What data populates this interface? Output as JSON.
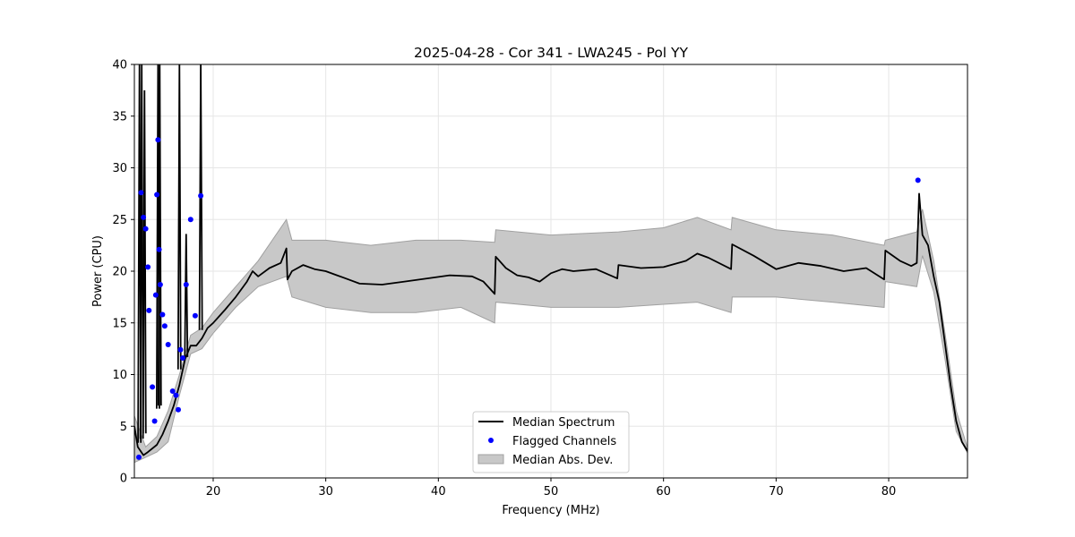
{
  "chart_data": {
    "type": "line",
    "title": "2025-04-28 - Cor 341 - LWA245 - Pol YY",
    "xlabel": "Frequency (MHz)",
    "ylabel": "Power (CPU)",
    "xlim": [
      13.0,
      87.0
    ],
    "ylim": [
      0,
      40
    ],
    "xticks": [
      20,
      30,
      40,
      50,
      60,
      70,
      80
    ],
    "yticks": [
      0,
      5,
      10,
      15,
      20,
      25,
      30,
      35,
      40
    ],
    "grid": true,
    "legend_position": "lower-center",
    "legend": {
      "median": "Median Spectrum",
      "flagged": "Flagged Channels",
      "mad": "Median Abs. Dev."
    },
    "colors": {
      "median": "#000000",
      "flagged": "#0000ff",
      "mad_fill": "#c8c8c8",
      "mad_edge": "#a0a0a0"
    },
    "series": [
      {
        "name": "Median Spectrum",
        "x": [
          13.0,
          13.3,
          13.8,
          14.2,
          15.0,
          15.5,
          16.0,
          16.5,
          17.0,
          17.5,
          18.0,
          18.5,
          19.0,
          19.5,
          20.0,
          21.0,
          22.0,
          23.0,
          23.5,
          24.0,
          25.0,
          26.0,
          26.5,
          26.6,
          27.0,
          28.0,
          29.0,
          30.0,
          31.0,
          32.0,
          33.0,
          35.0,
          37.0,
          39.0,
          41.0,
          43.0,
          44.0,
          45.0,
          45.1,
          46.0,
          47.0,
          48.0,
          49.0,
          50.0,
          51.0,
          52.0,
          54.0,
          55.9,
          56.0,
          58.0,
          60.0,
          62.0,
          63.0,
          64.0,
          66.0,
          66.1,
          68.0,
          70.0,
          72.0,
          74.0,
          76.0,
          78.0,
          79.6,
          79.7,
          81.0,
          82.0,
          82.5,
          82.7,
          83.0,
          83.5,
          84.0,
          84.5,
          85.0,
          85.5,
          86.0,
          86.5,
          87.0
        ],
        "y": [
          5.0,
          3.0,
          2.2,
          2.5,
          3.2,
          4.2,
          5.5,
          7.0,
          9.0,
          11.5,
          12.8,
          12.8,
          13.5,
          14.5,
          15.0,
          16.2,
          17.5,
          19.0,
          20.0,
          19.5,
          20.3,
          20.8,
          22.2,
          19.2,
          20.0,
          20.6,
          20.2,
          20.0,
          19.6,
          19.2,
          18.8,
          18.7,
          19.0,
          19.3,
          19.6,
          19.5,
          19.0,
          17.8,
          21.4,
          20.3,
          19.6,
          19.4,
          19.0,
          19.8,
          20.2,
          20.0,
          20.2,
          19.3,
          20.6,
          20.3,
          20.4,
          21.0,
          21.7,
          21.3,
          20.2,
          22.6,
          21.5,
          20.2,
          20.8,
          20.5,
          20.0,
          20.3,
          19.2,
          22.0,
          21.0,
          20.5,
          20.8,
          27.5,
          23.5,
          22.5,
          19.5,
          17.0,
          13.0,
          9.0,
          5.5,
          3.5,
          2.6
        ]
      },
      {
        "name": "Median Abs. Dev.",
        "x": [
          13.0,
          14.0,
          15.0,
          16.0,
          17.0,
          18.0,
          19.0,
          20.0,
          22.0,
          24.0,
          26.5,
          27.0,
          30.0,
          34.0,
          38.0,
          42.0,
          45.0,
          45.1,
          50.0,
          56.0,
          60.0,
          63.0,
          66.0,
          66.1,
          70.0,
          75.0,
          79.6,
          79.7,
          82.5,
          83.0,
          84.0,
          85.0,
          86.0,
          87.0
        ],
        "upper": [
          6.0,
          3.0,
          4.0,
          6.5,
          10.0,
          13.8,
          14.5,
          16.0,
          18.5,
          21.0,
          25.0,
          23.0,
          23.0,
          22.5,
          23.0,
          23.0,
          22.8,
          24.0,
          23.5,
          23.8,
          24.2,
          25.2,
          24.0,
          25.2,
          24.0,
          23.5,
          22.5,
          23.0,
          23.8,
          26.0,
          21.0,
          14.0,
          6.5,
          2.9
        ],
        "lower": [
          1.5,
          2.0,
          2.5,
          3.5,
          8.0,
          12.0,
          12.5,
          14.0,
          16.5,
          18.5,
          19.5,
          17.5,
          16.5,
          16.0,
          16.0,
          16.5,
          15.0,
          17.0,
          16.5,
          16.5,
          16.8,
          17.0,
          16.0,
          17.5,
          17.5,
          17.0,
          16.5,
          19.0,
          18.5,
          21.5,
          18.0,
          11.5,
          4.5,
          2.4
        ]
      },
      {
        "name": "Flagged Channels",
        "x": [
          13.4,
          13.6,
          13.8,
          14.0,
          14.2,
          14.3,
          14.6,
          14.8,
          14.9,
          15.0,
          15.1,
          15.2,
          15.3,
          15.5,
          15.7,
          16.0,
          16.4,
          16.7,
          16.9,
          17.1,
          17.3,
          17.6,
          18.0,
          18.4,
          18.9,
          82.6
        ],
        "y": [
          2.0,
          27.6,
          25.2,
          24.1,
          20.4,
          16.2,
          8.8,
          5.5,
          17.7,
          27.4,
          32.7,
          22.1,
          18.7,
          15.8,
          14.7,
          12.9,
          8.4,
          8.0,
          6.6,
          12.4,
          11.6,
          18.7,
          25.0,
          15.7,
          27.3,
          28.8
        ]
      }
    ],
    "spikes": [
      {
        "x": 13.45,
        "peak": 40
      },
      {
        "x": 13.65,
        "peak": 40
      },
      {
        "x": 13.9,
        "peak": 37.5
      },
      {
        "x": 15.1,
        "peak": 40
      },
      {
        "x": 15.25,
        "peak": 40
      },
      {
        "x": 17.0,
        "peak": 40
      },
      {
        "x": 17.6,
        "peak": 23.6
      },
      {
        "x": 18.9,
        "peak": 40
      }
    ]
  }
}
